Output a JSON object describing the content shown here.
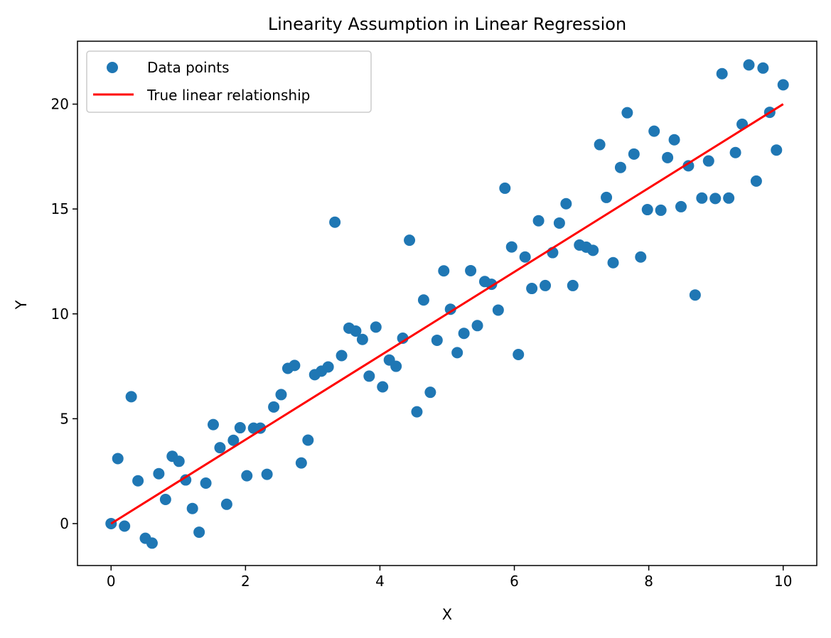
{
  "chart_data": {
    "type": "scatter",
    "title": "Linearity Assumption in Linear Regression",
    "xlabel": "X",
    "ylabel": "Y",
    "xlim": [
      -0.5,
      10.5
    ],
    "ylim": [
      -2.0,
      23.0
    ],
    "xticks": [
      0,
      2,
      4,
      6,
      8,
      10
    ],
    "yticks": [
      0,
      5,
      10,
      15,
      20
    ],
    "grid": false,
    "legend_position": "upper-left",
    "series": [
      {
        "name": "Data points",
        "kind": "scatter",
        "color": "#1f77b4",
        "points": [
          [
            0.0,
            0.0
          ],
          [
            0.1,
            3.1
          ],
          [
            0.2,
            -0.12
          ],
          [
            0.3,
            6.05
          ],
          [
            0.4,
            2.04
          ],
          [
            0.51,
            -0.7
          ],
          [
            0.61,
            -0.93
          ],
          [
            0.71,
            2.38
          ],
          [
            0.81,
            1.15
          ],
          [
            0.91,
            3.21
          ],
          [
            1.01,
            2.97
          ],
          [
            1.11,
            2.08
          ],
          [
            1.21,
            0.72
          ],
          [
            1.31,
            -0.41
          ],
          [
            1.41,
            1.93
          ],
          [
            1.52,
            4.72
          ],
          [
            1.62,
            3.62
          ],
          [
            1.72,
            0.92
          ],
          [
            1.82,
            3.97
          ],
          [
            1.92,
            4.57
          ],
          [
            2.02,
            2.28
          ],
          [
            2.12,
            4.55
          ],
          [
            2.22,
            4.55
          ],
          [
            2.32,
            2.35
          ],
          [
            2.42,
            5.56
          ],
          [
            2.53,
            6.15
          ],
          [
            2.63,
            7.4
          ],
          [
            2.73,
            7.54
          ],
          [
            2.83,
            2.89
          ],
          [
            2.93,
            3.98
          ],
          [
            3.03,
            7.1
          ],
          [
            3.13,
            7.27
          ],
          [
            3.23,
            7.47
          ],
          [
            3.33,
            14.37
          ],
          [
            3.43,
            8.01
          ],
          [
            3.54,
            9.32
          ],
          [
            3.64,
            9.18
          ],
          [
            3.74,
            8.78
          ],
          [
            3.84,
            7.03
          ],
          [
            3.94,
            9.37
          ],
          [
            4.04,
            6.52
          ],
          [
            4.14,
            7.8
          ],
          [
            4.24,
            7.5
          ],
          [
            4.34,
            8.84
          ],
          [
            4.44,
            13.51
          ],
          [
            4.55,
            5.33
          ],
          [
            4.65,
            10.66
          ],
          [
            4.75,
            6.26
          ],
          [
            4.85,
            8.74
          ],
          [
            4.95,
            12.05
          ],
          [
            5.05,
            10.22
          ],
          [
            5.15,
            8.15
          ],
          [
            5.25,
            9.07
          ],
          [
            5.35,
            12.06
          ],
          [
            5.45,
            9.44
          ],
          [
            5.56,
            11.54
          ],
          [
            5.66,
            11.41
          ],
          [
            5.76,
            10.18
          ],
          [
            5.86,
            15.99
          ],
          [
            5.96,
            13.19
          ],
          [
            6.06,
            8.06
          ],
          [
            6.16,
            12.71
          ],
          [
            6.26,
            11.21
          ],
          [
            6.36,
            14.44
          ],
          [
            6.46,
            11.35
          ],
          [
            6.57,
            12.92
          ],
          [
            6.67,
            14.33
          ],
          [
            6.77,
            15.25
          ],
          [
            6.87,
            11.35
          ],
          [
            6.97,
            13.28
          ],
          [
            7.07,
            13.18
          ],
          [
            7.17,
            13.03
          ],
          [
            7.27,
            18.07
          ],
          [
            7.37,
            15.55
          ],
          [
            7.47,
            12.44
          ],
          [
            7.58,
            16.98
          ],
          [
            7.68,
            19.59
          ],
          [
            7.78,
            17.62
          ],
          [
            7.88,
            12.71
          ],
          [
            7.98,
            14.97
          ],
          [
            8.08,
            18.71
          ],
          [
            8.18,
            14.94
          ],
          [
            8.28,
            17.45
          ],
          [
            8.38,
            18.3
          ],
          [
            8.48,
            15.11
          ],
          [
            8.59,
            17.06
          ],
          [
            8.69,
            10.9
          ],
          [
            8.79,
            15.52
          ],
          [
            8.89,
            17.29
          ],
          [
            8.99,
            15.5
          ],
          [
            9.09,
            21.45
          ],
          [
            9.19,
            15.52
          ],
          [
            9.29,
            17.69
          ],
          [
            9.39,
            19.04
          ],
          [
            9.49,
            21.87
          ],
          [
            9.6,
            16.33
          ],
          [
            9.7,
            21.72
          ],
          [
            9.8,
            19.61
          ],
          [
            9.9,
            17.81
          ],
          [
            10.0,
            20.92
          ]
        ]
      },
      {
        "name": "True linear relationship",
        "kind": "line",
        "color": "#ff0000",
        "points": [
          [
            0,
            0
          ],
          [
            10,
            20
          ]
        ]
      }
    ]
  }
}
